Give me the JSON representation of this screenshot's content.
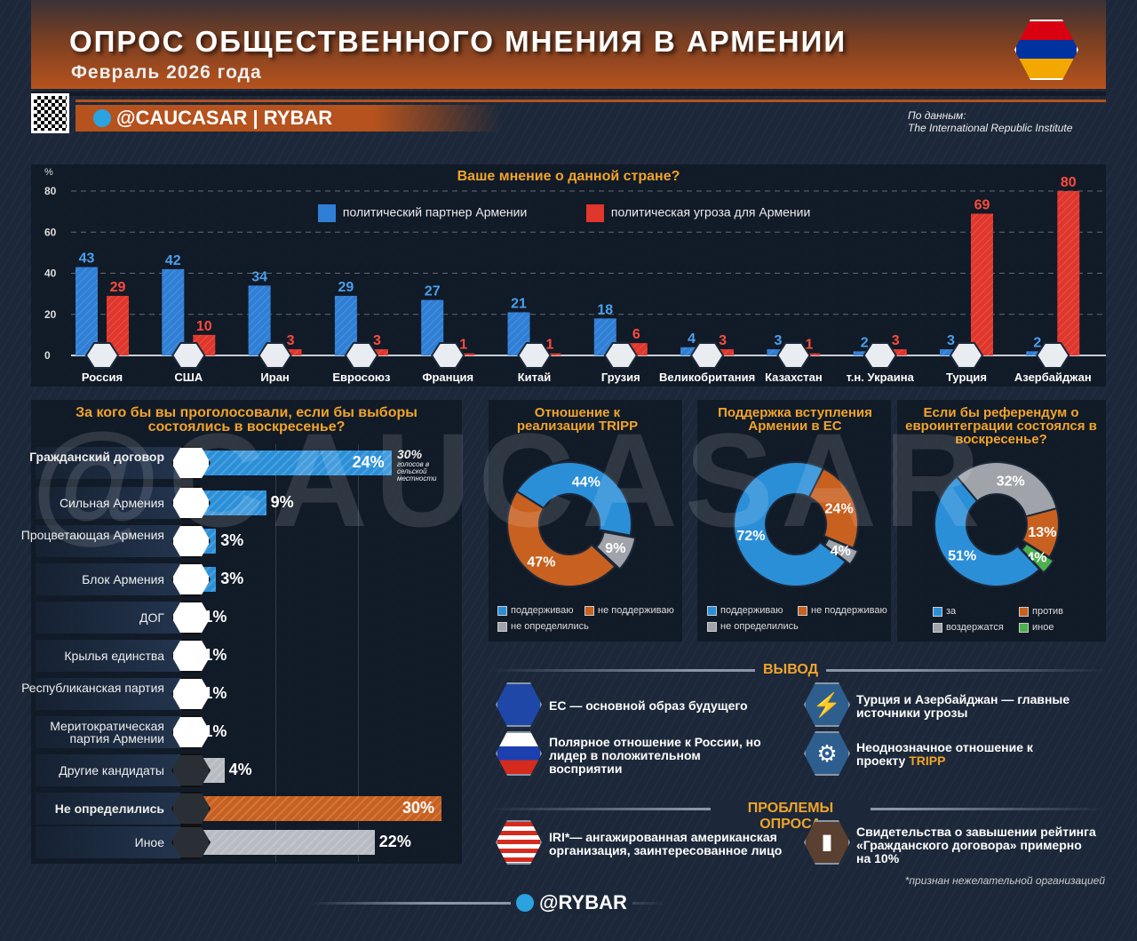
{
  "header": {
    "title": "ОПРОС ОБЩЕСТВЕННОГО МНЕНИЯ В АРМЕНИИ",
    "subtitle": "Февраль 2026 года",
    "brand": "@CAUCASAR | RYBAR",
    "source_label": "По данным:",
    "source": "The International Republic Institute",
    "watermark": "@CAUCASAR"
  },
  "chart_data": [
    {
      "type": "bar",
      "title": "Ваше мнение о данной стране?",
      "ylabel": "%",
      "ylim": [
        0,
        80
      ],
      "yticks": [
        0,
        20,
        40,
        60,
        80
      ],
      "grid": true,
      "legend": "top",
      "categories": [
        "Россия",
        "США",
        "Иран",
        "Евросоюз",
        "Франция",
        "Китай",
        "Грузия",
        "Великобритания",
        "Казахстан",
        "т.н. Украина",
        "Турция",
        "Азербайджан"
      ],
      "series": [
        {
          "name": "политический партнер Армении",
          "color": "#2f7fd6",
          "values": [
            43,
            42,
            34,
            29,
            27,
            21,
            18,
            4,
            3,
            2,
            3,
            2
          ]
        },
        {
          "name": "политическая угроза для Армении",
          "color": "#e0362c",
          "values": [
            29,
            10,
            3,
            3,
            1,
            1,
            6,
            3,
            1,
            3,
            69,
            80
          ]
        }
      ]
    },
    {
      "type": "bar",
      "orientation": "horizontal",
      "title": "За кого бы вы проголосовали, если бы выборы состоялись в воскресенье?",
      "xlim": [
        0,
        30
      ],
      "categories": [
        "Гражданский договор",
        "Сильная Армения",
        "Процветающая Армения",
        "Блок Армения",
        "ДОГ",
        "Крылья единства",
        "Республиканская партия",
        "Меритократическая партия Армении",
        "Другие кандидаты",
        "Не определились",
        "Иное"
      ],
      "values": [
        24,
        9,
        3,
        3,
        1,
        1,
        1,
        1,
        4,
        30,
        22
      ],
      "labels": [
        "24%",
        "9%",
        "3%",
        "3%",
        "1%",
        "1%",
        "1%",
        "1%",
        "4%",
        "30%",
        "22%"
      ],
      "colors": [
        "#2b8fd8",
        "#2b8fd8",
        "#2b8fd8",
        "#2b8fd8",
        "#2b8fd8",
        "#2b8fd8",
        "#2b8fd8",
        "#2b8fd8",
        "#b8bcc2",
        "#c8601f",
        "#b8bcc2"
      ],
      "annotation": {
        "value": "30%",
        "text": "голосов в сельской местности"
      }
    },
    {
      "type": "pie",
      "title": "Отношение к реализации TRIPP",
      "labels": [
        "поддерживаю",
        "не поддерживаю",
        "не определились"
      ],
      "values": [
        44,
        47,
        9
      ],
      "colors": [
        "#2b8fd8",
        "#c8601f",
        "#a0a4aa"
      ]
    },
    {
      "type": "pie",
      "title": "Поддержка вступления Армении в ЕС",
      "labels": [
        "поддерживаю",
        "не поддерживаю",
        "не определились"
      ],
      "values": [
        72,
        24,
        4
      ],
      "colors": [
        "#2b8fd8",
        "#c8601f",
        "#a0a4aa"
      ]
    },
    {
      "type": "pie",
      "title": "Если бы референдум о евроинтеграции состоялся в воскресенье?",
      "labels": [
        "за",
        "против",
        "воздержатся",
        "иное"
      ],
      "values": [
        51,
        13,
        32,
        4
      ],
      "colors": [
        "#2b8fd8",
        "#c8601f",
        "#a0a4aa",
        "#4caf50"
      ]
    }
  ],
  "conclusions": {
    "heading": "ВЫВОД",
    "items": [
      {
        "icon": "eu-flag-icon",
        "text": "ЕС — основной образ будущего"
      },
      {
        "icon": "lightning-icon",
        "text": "Турция и Азербайджан — главные источники угрозы"
      },
      {
        "icon": "russia-flag-icon",
        "text": "Полярное отношение к России, но лидер в положительном восприятии"
      },
      {
        "icon": "tripp-icon",
        "text": "Неоднозначное отношение к проекту ",
        "highlight": "TRIPP"
      }
    ]
  },
  "problems": {
    "heading": "ПРОБЛЕМЫ ОПРОСА",
    "items": [
      {
        "icon": "usa-flag-icon",
        "text": "IRI*— ангажированная американская организация, заинтересованное лицо"
      },
      {
        "icon": "bar-chart-icon",
        "text": "Свидетельства о завышении рейтинга «Гражданского договора» примерно на 10%"
      }
    ]
  },
  "footnote": "*признан нежелательной организацией",
  "footer": {
    "brand": "@RYBAR"
  }
}
